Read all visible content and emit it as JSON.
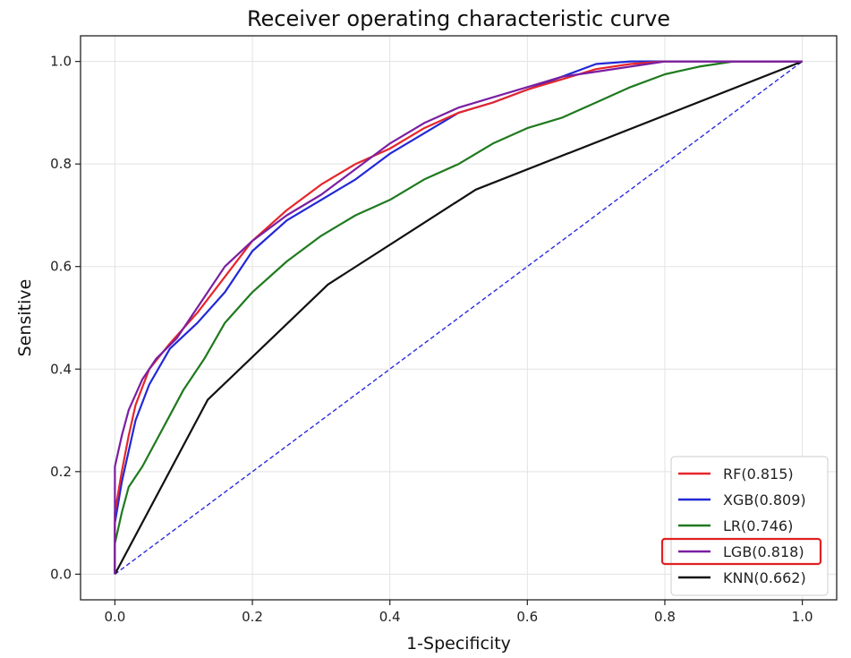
{
  "chart_data": {
    "type": "line",
    "title": "Receiver operating characteristic curve",
    "xlabel": "1-Specificity",
    "ylabel": "Sensitive",
    "xlim": [
      -0.05,
      1.05
    ],
    "ylim": [
      -0.05,
      1.05
    ],
    "xticks": [
      "0.0",
      "0.2",
      "0.4",
      "0.6",
      "0.8",
      "1.0"
    ],
    "yticks": [
      "0.0",
      "0.2",
      "0.4",
      "0.6",
      "0.8",
      "1.0"
    ],
    "grid": true,
    "legend_position": "lower-right",
    "highlighted_series": "LGB(0.818)",
    "highlight_color": "#e02020",
    "series": [
      {
        "name": "RF(0.815)",
        "color": "#e6262b",
        "x": [
          0.0,
          0.0,
          0.01,
          0.02,
          0.03,
          0.05,
          0.08,
          0.12,
          0.16,
          0.2,
          0.25,
          0.3,
          0.35,
          0.4,
          0.45,
          0.5,
          0.55,
          0.6,
          0.65,
          0.7,
          0.75,
          0.8,
          0.85,
          0.9,
          0.95,
          1.0
        ],
        "y": [
          0.0,
          0.12,
          0.2,
          0.27,
          0.33,
          0.4,
          0.45,
          0.51,
          0.58,
          0.65,
          0.71,
          0.76,
          0.8,
          0.83,
          0.87,
          0.9,
          0.92,
          0.945,
          0.965,
          0.985,
          0.995,
          1.0,
          1.0,
          1.0,
          1.0,
          1.0
        ]
      },
      {
        "name": "XGB(0.809)",
        "color": "#2228d6",
        "x": [
          0.0,
          0.0,
          0.01,
          0.02,
          0.03,
          0.05,
          0.08,
          0.12,
          0.16,
          0.2,
          0.25,
          0.3,
          0.35,
          0.4,
          0.45,
          0.5,
          0.55,
          0.6,
          0.65,
          0.7,
          0.75,
          0.8,
          0.85,
          0.9,
          0.95,
          1.0
        ],
        "y": [
          0.0,
          0.1,
          0.18,
          0.24,
          0.3,
          0.37,
          0.44,
          0.49,
          0.55,
          0.63,
          0.69,
          0.73,
          0.77,
          0.82,
          0.86,
          0.9,
          0.92,
          0.945,
          0.97,
          0.995,
          1.0,
          1.0,
          1.0,
          1.0,
          1.0,
          1.0
        ]
      },
      {
        "name": "LR(0.746)",
        "color": "#1f7a1f",
        "x": [
          0.0,
          0.0,
          0.01,
          0.02,
          0.04,
          0.06,
          0.08,
          0.1,
          0.13,
          0.16,
          0.2,
          0.25,
          0.3,
          0.35,
          0.4,
          0.45,
          0.5,
          0.55,
          0.6,
          0.65,
          0.7,
          0.75,
          0.8,
          0.85,
          0.9,
          0.95,
          1.0
        ],
        "y": [
          0.0,
          0.06,
          0.12,
          0.17,
          0.21,
          0.26,
          0.31,
          0.36,
          0.42,
          0.49,
          0.55,
          0.61,
          0.66,
          0.7,
          0.73,
          0.77,
          0.8,
          0.84,
          0.87,
          0.89,
          0.92,
          0.95,
          0.975,
          0.99,
          1.0,
          1.0,
          1.0
        ]
      },
      {
        "name": "LGB(0.818)",
        "color": "#7a1fa2",
        "x": [
          0.0,
          0.0,
          0.01,
          0.02,
          0.04,
          0.06,
          0.09,
          0.12,
          0.16,
          0.2,
          0.25,
          0.3,
          0.35,
          0.4,
          0.45,
          0.5,
          0.55,
          0.6,
          0.65,
          0.7,
          0.75,
          0.8,
          0.85,
          0.9,
          0.95,
          1.0
        ],
        "y": [
          0.0,
          0.21,
          0.27,
          0.32,
          0.38,
          0.42,
          0.46,
          0.52,
          0.6,
          0.65,
          0.7,
          0.74,
          0.79,
          0.84,
          0.88,
          0.91,
          0.93,
          0.95,
          0.97,
          0.98,
          0.99,
          1.0,
          1.0,
          1.0,
          1.0,
          1.0
        ]
      },
      {
        "name": "KNN(0.662)",
        "color": "#111111",
        "x": [
          0.0,
          0.135,
          0.31,
          0.525,
          1.0
        ],
        "y": [
          0.0,
          0.34,
          0.565,
          0.75,
          1.0
        ]
      },
      {
        "color": "#2b2be0",
        "style": "dashed",
        "x": [
          0.0,
          1.0
        ],
        "y": [
          0.0,
          1.0
        ]
      }
    ]
  }
}
